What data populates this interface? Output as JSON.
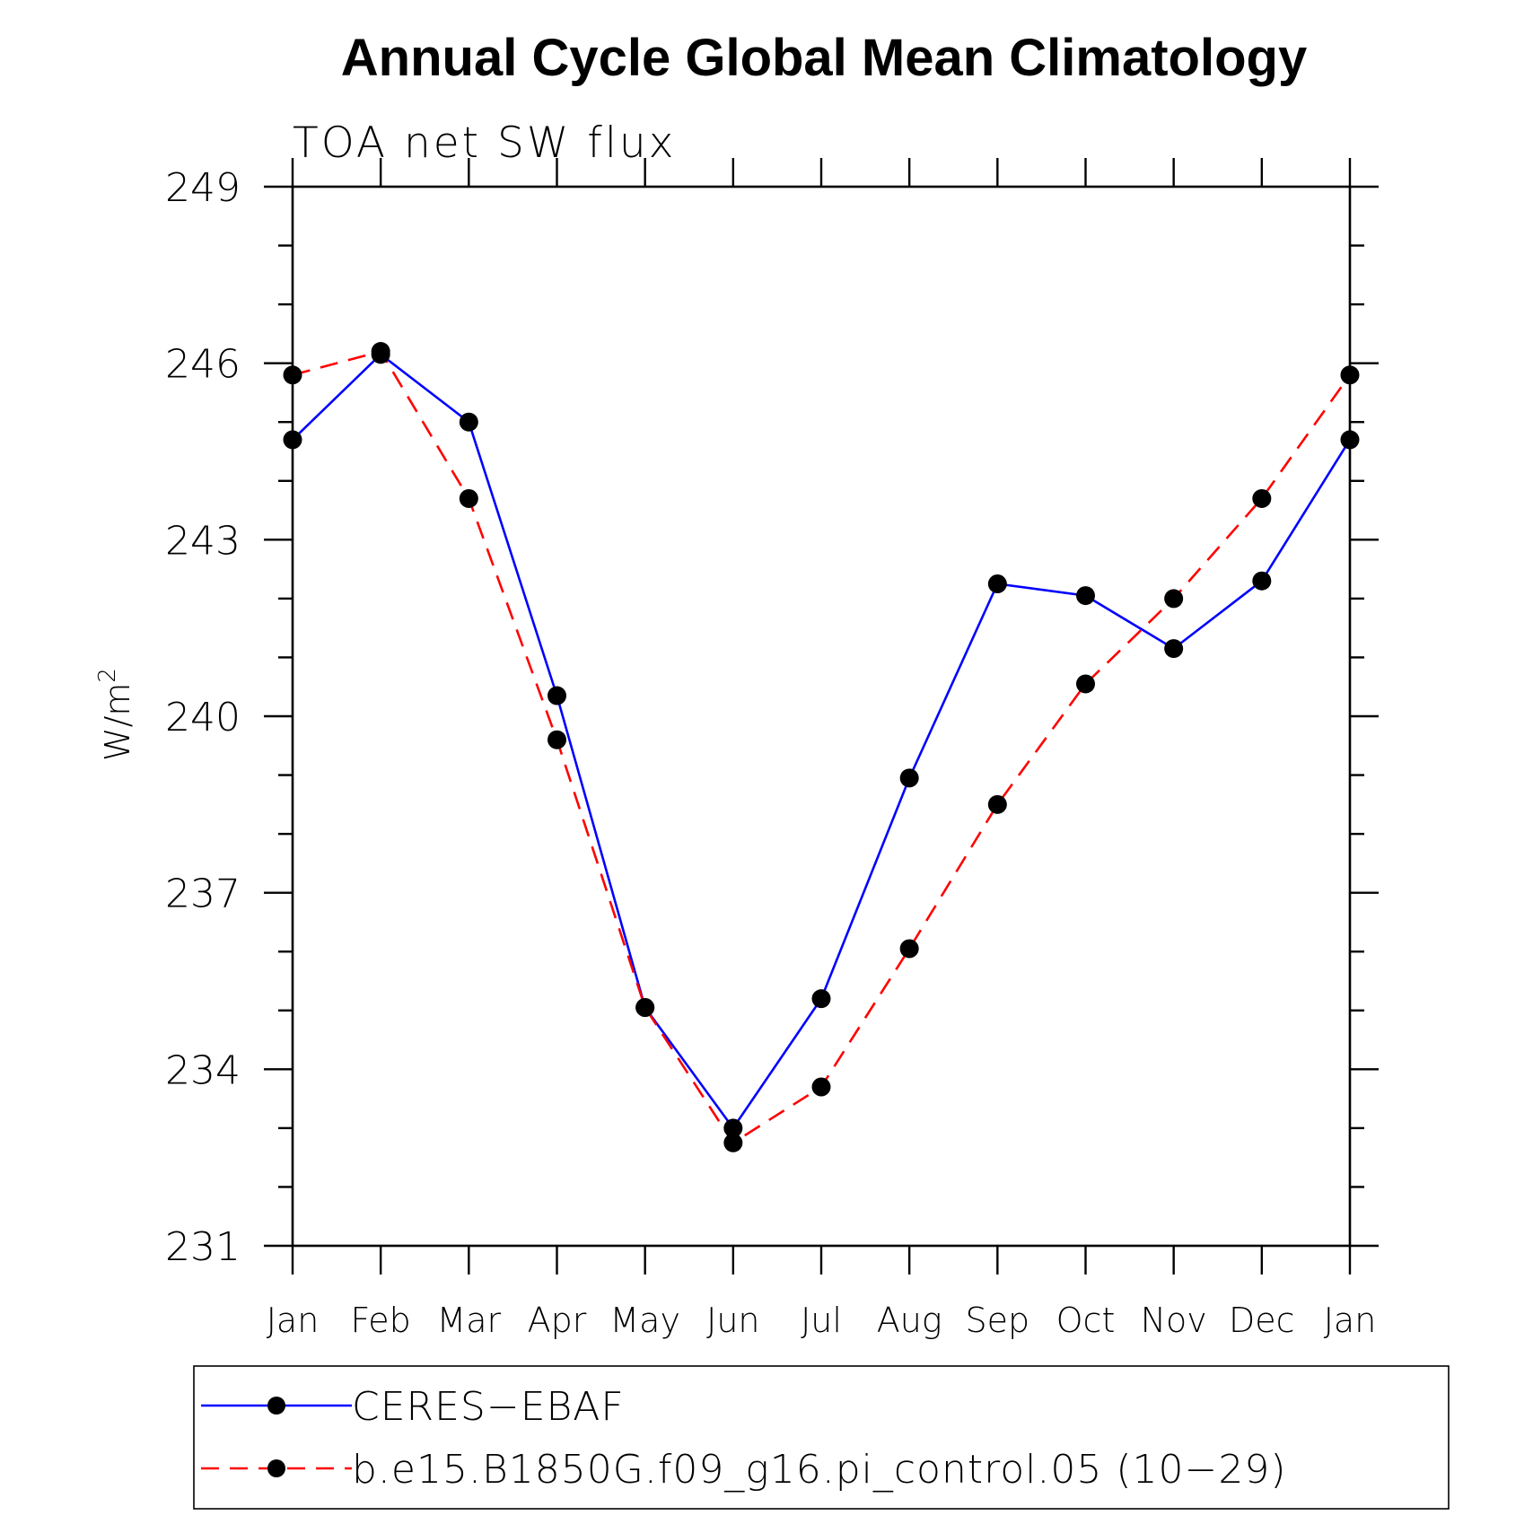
{
  "chart_data": {
    "type": "line",
    "title": "Annual Cycle Global Mean Climatology",
    "subtitle": "TOA net SW flux",
    "xlabel": "",
    "ylabel": "W/m",
    "ylabel_superscript": "2",
    "categories": [
      "Jan",
      "Feb",
      "Mar",
      "Apr",
      "May",
      "Jun",
      "Jul",
      "Aug",
      "Sep",
      "Oct",
      "Nov",
      "Dec",
      "Jan"
    ],
    "ylim": [
      231,
      249
    ],
    "yticks": [
      "231",
      "234",
      "237",
      "240",
      "243",
      "246",
      "249"
    ],
    "ytick_values": [
      231,
      234,
      237,
      240,
      243,
      246,
      249
    ],
    "y_minor_step": 1,
    "grid": false,
    "legend_position": "bottom",
    "series": [
      {
        "name": "CERES−EBAF",
        "color": "#0000ff",
        "style": "solid",
        "marker": "filled-circle",
        "values": [
          244.7,
          246.15,
          245.0,
          240.35,
          235.05,
          233.0,
          235.2,
          238.95,
          242.25,
          242.05,
          241.15,
          242.3,
          244.7
        ]
      },
      {
        "name": "b.e15.B1850G.f09_g16.pi_control.05 (10−29)",
        "color": "#ff0000",
        "style": "dashed",
        "marker": "filled-circle",
        "values": [
          245.8,
          246.2,
          243.7,
          239.6,
          235.05,
          232.75,
          233.7,
          236.05,
          238.5,
          240.55,
          242.0,
          243.7,
          245.8
        ]
      }
    ]
  }
}
